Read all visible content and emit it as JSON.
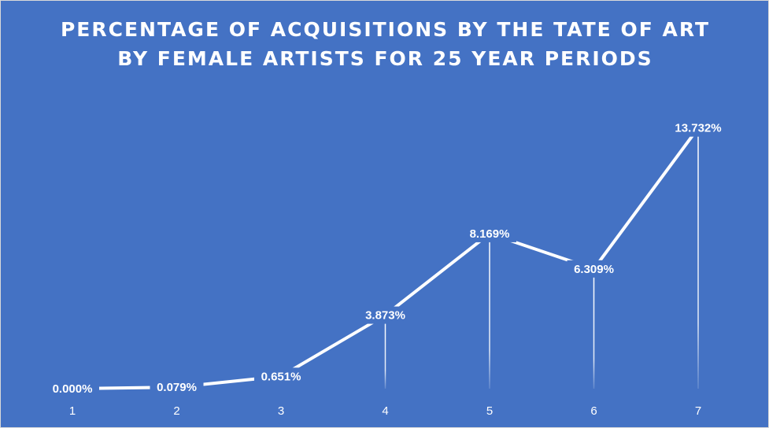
{
  "chart_data": {
    "type": "line",
    "title_lines": [
      "PERCENTAGE OF ACQUISITIONS BY THE TATE OF ART",
      "BY FEMALE ARTISTS FOR 25 YEAR PERIODS"
    ],
    "categories": [
      "1",
      "2",
      "3",
      "4",
      "5",
      "6",
      "7"
    ],
    "series": [
      {
        "values": [
          0.0,
          0.079,
          0.651,
          3.873,
          8.169,
          6.309,
          13.732
        ],
        "data_labels": [
          "0.000%",
          "0.079%",
          "0.651%",
          "3.873%",
          "8.169%",
          "6.309%",
          "13.732%"
        ]
      }
    ],
    "ylim": [
      0,
      14.3
    ],
    "drop_lines": true,
    "grid": false,
    "legend": "none",
    "colors": {
      "background": "#4472C4",
      "line": "#FFFFFF",
      "text": "#FFFFFF"
    }
  }
}
